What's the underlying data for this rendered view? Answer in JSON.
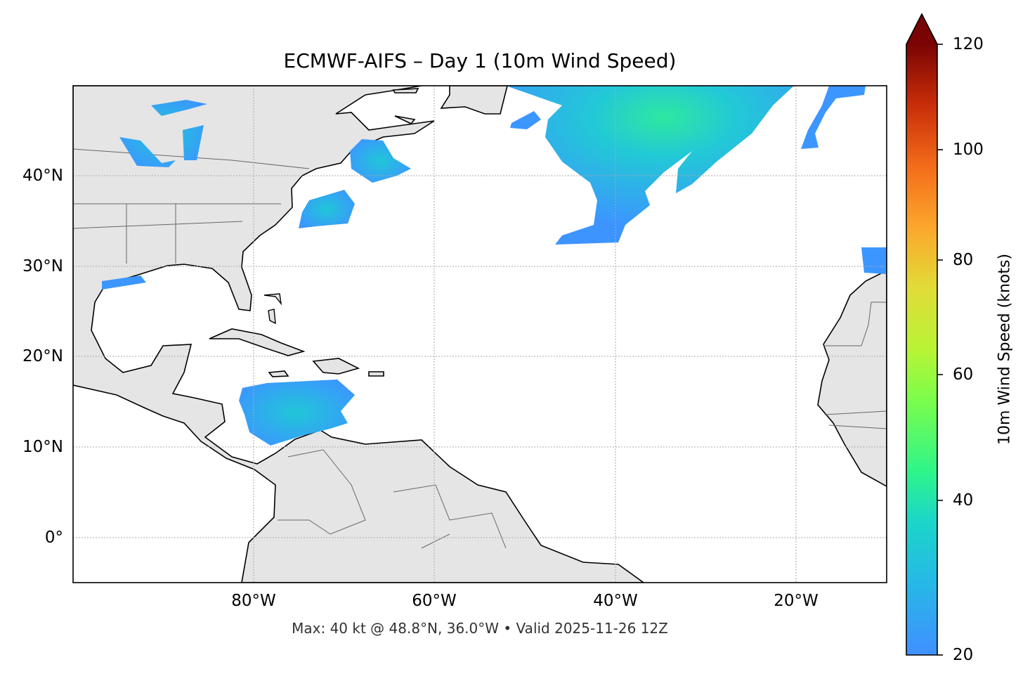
{
  "title": "ECMWF-AIFS – Day 1 (10m Wind Speed)",
  "caption": "Max: 40 kt @ 48.8°N, 36.0°W • Valid 2025-11-26 12Z",
  "map": {
    "extent": {
      "lon": [
        -100,
        -10
      ],
      "lat": [
        -5,
        50
      ]
    },
    "projection": "PlateCarree",
    "land_color": "#e5e5e5",
    "ocean_color": "#ffffff",
    "gridlines": "dotted",
    "x_ticks": [
      "80°W",
      "60°W",
      "40°W",
      "20°W"
    ],
    "y_ticks": [
      "40°N",
      "30°N",
      "20°N",
      "10°N",
      "0°"
    ],
    "max_point": {
      "lat": 48.8,
      "lon": -36.0,
      "value_kt": 40
    }
  },
  "colorbar": {
    "label": "10m Wind Speed (knots)",
    "ticks": [
      "20",
      "40",
      "60",
      "80",
      "100",
      "120"
    ],
    "range": [
      20,
      120
    ],
    "extend": "max",
    "colormap": [
      "#4090ff",
      "#1bd0d5",
      "#2ef58a",
      "#a4fc3b",
      "#e1dc37",
      "#fca72c",
      "#e4460a",
      "#7a0403"
    ]
  }
}
